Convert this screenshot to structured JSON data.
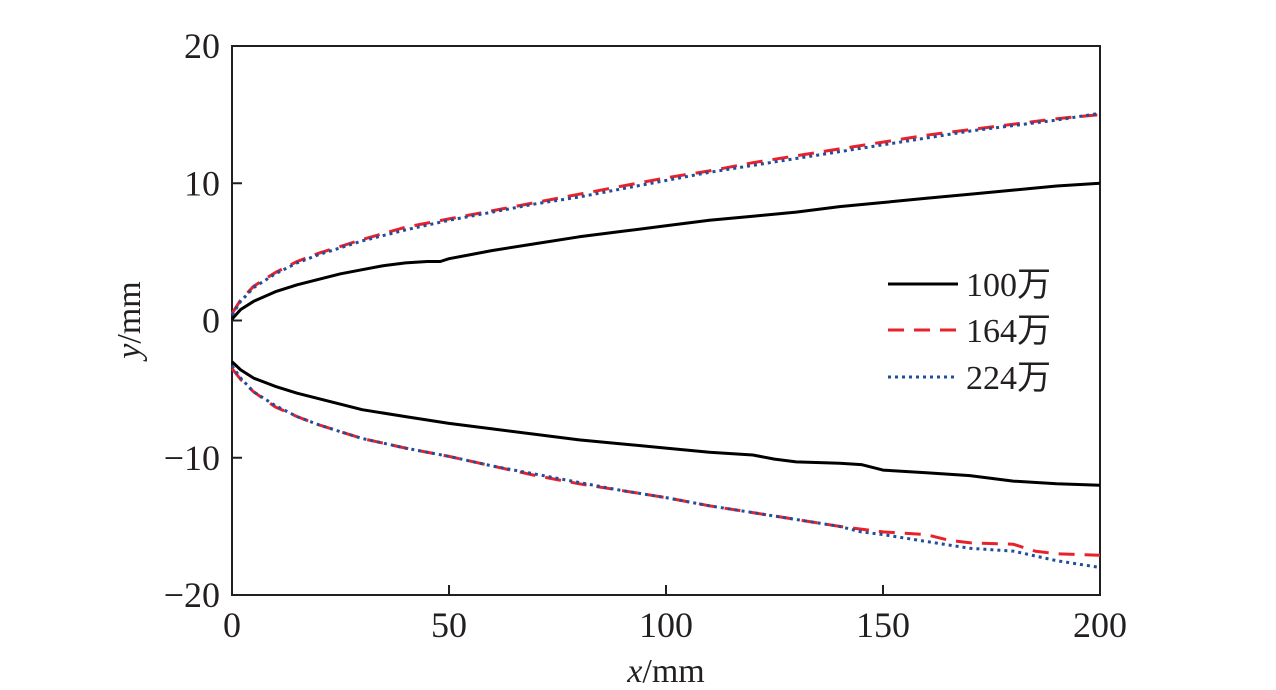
{
  "chart_data": {
    "type": "line",
    "xlabel_var": "x",
    "xlabel_unit": "/mm",
    "ylabel_var": "y",
    "ylabel_unit": "/mm",
    "xlim": [
      0,
      200
    ],
    "ylim": [
      -20,
      20
    ],
    "xticks": [
      0,
      50,
      100,
      150,
      200
    ],
    "xtick_labels": [
      "0",
      "50",
      "100",
      "150",
      "200"
    ],
    "yticks": [
      20,
      10,
      0,
      -10,
      -20
    ],
    "ytick_labels": [
      "20",
      "10",
      "0",
      "−10",
      "−20"
    ],
    "grid": false,
    "legend_position": "right",
    "series": [
      {
        "name": "100万",
        "color": "#000000",
        "dash": "solid",
        "upper": {
          "x": [
            0,
            2,
            5,
            10,
            15,
            20,
            25,
            30,
            35,
            40,
            45,
            48,
            50,
            55,
            60,
            70,
            80,
            90,
            100,
            110,
            120,
            130,
            140,
            150,
            160,
            170,
            180,
            190,
            200
          ],
          "y": [
            0.1,
            0.8,
            1.4,
            2.1,
            2.6,
            3.0,
            3.4,
            3.7,
            4.0,
            4.2,
            4.3,
            4.3,
            4.5,
            4.8,
            5.1,
            5.6,
            6.1,
            6.5,
            6.9,
            7.3,
            7.6,
            7.9,
            8.3,
            8.6,
            8.9,
            9.2,
            9.5,
            9.8,
            10.0
          ]
        },
        "lower": {
          "x": [
            0,
            2,
            5,
            10,
            15,
            20,
            25,
            30,
            40,
            50,
            60,
            70,
            80,
            90,
            100,
            110,
            120,
            125,
            130,
            140,
            145,
            150,
            160,
            170,
            180,
            190,
            200
          ],
          "y": [
            -3.0,
            -3.6,
            -4.2,
            -4.8,
            -5.3,
            -5.7,
            -6.1,
            -6.5,
            -7.0,
            -7.5,
            -7.9,
            -8.3,
            -8.7,
            -9.0,
            -9.3,
            -9.6,
            -9.8,
            -10.1,
            -10.3,
            -10.4,
            -10.5,
            -10.9,
            -11.1,
            -11.3,
            -11.7,
            -11.9,
            -12.0
          ]
        }
      },
      {
        "name": "164万",
        "color": "#e8212b",
        "dash": "dash",
        "upper": {
          "x": [
            0,
            2,
            5,
            10,
            15,
            20,
            25,
            30,
            40,
            50,
            60,
            70,
            80,
            90,
            100,
            110,
            120,
            130,
            140,
            150,
            160,
            170,
            180,
            190,
            200
          ],
          "y": [
            0.5,
            1.5,
            2.5,
            3.5,
            4.3,
            4.9,
            5.4,
            5.9,
            6.8,
            7.4,
            8.0,
            8.6,
            9.2,
            9.8,
            10.4,
            10.9,
            11.5,
            12.0,
            12.5,
            13.0,
            13.5,
            13.9,
            14.3,
            14.7,
            15.0
          ]
        },
        "lower": {
          "x": [
            0,
            2,
            5,
            10,
            15,
            20,
            25,
            30,
            40,
            50,
            60,
            70,
            80,
            90,
            100,
            110,
            120,
            130,
            140,
            150,
            160,
            165,
            170,
            180,
            185,
            190,
            200
          ],
          "y": [
            -3.5,
            -4.3,
            -5.2,
            -6.3,
            -7.0,
            -7.6,
            -8.1,
            -8.6,
            -9.3,
            -9.9,
            -10.6,
            -11.3,
            -11.9,
            -12.4,
            -12.9,
            -13.5,
            -14.0,
            -14.5,
            -15.0,
            -15.4,
            -15.6,
            -16.0,
            -16.2,
            -16.3,
            -16.8,
            -17.0,
            -17.1
          ]
        }
      },
      {
        "name": "224万",
        "color": "#1f4e9b",
        "dash": "dot",
        "upper": {
          "x": [
            0,
            2,
            5,
            10,
            15,
            20,
            25,
            30,
            40,
            50,
            60,
            70,
            80,
            90,
            100,
            110,
            120,
            130,
            140,
            150,
            160,
            170,
            180,
            190,
            200
          ],
          "y": [
            0.4,
            1.4,
            2.4,
            3.4,
            4.2,
            4.8,
            5.3,
            5.8,
            6.6,
            7.3,
            7.9,
            8.5,
            9.0,
            9.6,
            10.2,
            10.8,
            11.3,
            11.8,
            12.3,
            12.8,
            13.3,
            13.8,
            14.2,
            14.6,
            15.1
          ]
        },
        "lower": {
          "x": [
            0,
            2,
            5,
            10,
            15,
            20,
            25,
            30,
            40,
            50,
            60,
            70,
            80,
            90,
            100,
            110,
            120,
            130,
            140,
            145,
            150,
            160,
            170,
            180,
            190,
            200
          ],
          "y": [
            -3.3,
            -4.2,
            -5.2,
            -6.2,
            -7.0,
            -7.6,
            -8.1,
            -8.6,
            -9.3,
            -9.9,
            -10.6,
            -11.2,
            -11.8,
            -12.4,
            -12.9,
            -13.5,
            -14.0,
            -14.5,
            -15.0,
            -15.4,
            -15.6,
            -16.1,
            -16.6,
            -16.8,
            -17.5,
            -18.0
          ]
        }
      }
    ]
  }
}
